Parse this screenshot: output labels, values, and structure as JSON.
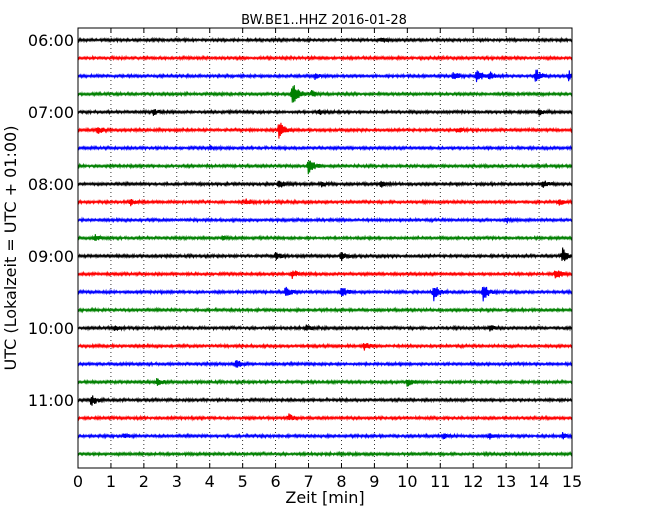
{
  "chart_data": {
    "type": "line",
    "title": "BW.BE1..HHZ 2016-01-28",
    "xlabel": "Zeit  [min]",
    "ylabel": "UTC (Lokalzeit = UTC + 01:00)",
    "xlim": [
      0,
      15
    ],
    "x_ticks": [
      "0",
      "1",
      "2",
      "3",
      "4",
      "5",
      "6",
      "7",
      "8",
      "9",
      "10",
      "11",
      "12",
      "13",
      "14",
      "15"
    ],
    "y_tick_labels": [
      "06:00",
      "07:00",
      "08:00",
      "09:00",
      "10:00",
      "11:00"
    ],
    "grid": "vertical dotted at each minute",
    "trace_colors": [
      "#000000",
      "#ff0000",
      "#0000ff",
      "#008000"
    ],
    "traces": [
      {
        "start": "06:00",
        "color": "#000000",
        "events": [
          {
            "t": 9.2,
            "amp": 3
          }
        ]
      },
      {
        "start": "06:15",
        "color": "#ff0000",
        "events": []
      },
      {
        "start": "06:30",
        "color": "#0000ff",
        "events": [
          {
            "t": 7.2,
            "amp": 3
          },
          {
            "t": 11.4,
            "amp": 6
          },
          {
            "t": 12.1,
            "amp": 8
          },
          {
            "t": 12.5,
            "amp": 5
          },
          {
            "t": 13.9,
            "amp": 8
          },
          {
            "t": 14.9,
            "amp": 5
          }
        ]
      },
      {
        "start": "06:45",
        "color": "#008000",
        "events": [
          {
            "t": 6.5,
            "amp": 16
          },
          {
            "t": 7.1,
            "amp": 3
          }
        ]
      },
      {
        "start": "07:00",
        "color": "#000000",
        "events": [
          {
            "t": 2.3,
            "amp": 3
          },
          {
            "t": 7.3,
            "amp": 3
          },
          {
            "t": 14.0,
            "amp": 3
          }
        ]
      },
      {
        "start": "07:15",
        "color": "#ff0000",
        "events": [
          {
            "t": 0.6,
            "amp": 4
          },
          {
            "t": 6.1,
            "amp": 10
          },
          {
            "t": 11.5,
            "amp": 3
          }
        ]
      },
      {
        "start": "07:30",
        "color": "#0000ff",
        "events": [
          {
            "t": 4.0,
            "amp": 2
          }
        ]
      },
      {
        "start": "07:45",
        "color": "#008000",
        "events": [
          {
            "t": 7.0,
            "amp": 11
          },
          {
            "t": 15.0,
            "amp": 3
          }
        ]
      },
      {
        "start": "08:00",
        "color": "#000000",
        "events": [
          {
            "t": 6.1,
            "amp": 5
          },
          {
            "t": 7.4,
            "amp": 3
          },
          {
            "t": 9.2,
            "amp": 3
          },
          {
            "t": 14.1,
            "amp": 5
          }
        ]
      },
      {
        "start": "08:15",
        "color": "#ff0000",
        "events": [
          {
            "t": 1.6,
            "amp": 3
          },
          {
            "t": 5.1,
            "amp": 3
          },
          {
            "t": 14.6,
            "amp": 3
          }
        ]
      },
      {
        "start": "08:30",
        "color": "#0000ff",
        "events": [
          {
            "t": 13.0,
            "amp": 3
          }
        ]
      },
      {
        "start": "08:45",
        "color": "#008000",
        "events": [
          {
            "t": 0.5,
            "amp": 3
          },
          {
            "t": 4.4,
            "amp": 3
          }
        ]
      },
      {
        "start": "09:00",
        "color": "#000000",
        "events": [
          {
            "t": 6.0,
            "amp": 4
          },
          {
            "t": 8.0,
            "amp": 5
          },
          {
            "t": 14.7,
            "amp": 8
          }
        ]
      },
      {
        "start": "09:15",
        "color": "#ff0000",
        "events": [
          {
            "t": 6.5,
            "amp": 5
          },
          {
            "t": 14.5,
            "amp": 6
          }
        ]
      },
      {
        "start": "09:30",
        "color": "#0000ff",
        "events": [
          {
            "t": 6.3,
            "amp": 6
          },
          {
            "t": 8.0,
            "amp": 7
          },
          {
            "t": 10.8,
            "amp": 10
          },
          {
            "t": 12.3,
            "amp": 11
          }
        ]
      },
      {
        "start": "09:45",
        "color": "#008000",
        "events": []
      },
      {
        "start": "10:00",
        "color": "#000000",
        "events": [
          {
            "t": 1.1,
            "amp": 3
          },
          {
            "t": 6.9,
            "amp": 3
          },
          {
            "t": 12.5,
            "amp": 3
          }
        ]
      },
      {
        "start": "10:15",
        "color": "#ff0000",
        "events": [
          {
            "t": 8.7,
            "amp": 4
          }
        ]
      },
      {
        "start": "10:30",
        "color": "#0000ff",
        "events": [
          {
            "t": 4.8,
            "amp": 5
          }
        ]
      },
      {
        "start": "10:45",
        "color": "#008000",
        "events": [
          {
            "t": 2.4,
            "amp": 4
          },
          {
            "t": 10.0,
            "amp": 4
          }
        ]
      },
      {
        "start": "11:00",
        "color": "#000000",
        "events": [
          {
            "t": 0.4,
            "amp": 6
          }
        ]
      },
      {
        "start": "11:15",
        "color": "#ff0000",
        "events": [
          {
            "t": 6.4,
            "amp": 4
          }
        ]
      },
      {
        "start": "11:30",
        "color": "#0000ff",
        "events": [
          {
            "t": 1.4,
            "amp": 2
          },
          {
            "t": 11.1,
            "amp": 3
          },
          {
            "t": 12.5,
            "amp": 3
          },
          {
            "t": 14.7,
            "amp": 3
          }
        ]
      },
      {
        "start": "11:45",
        "color": "#008000",
        "events": []
      }
    ]
  }
}
